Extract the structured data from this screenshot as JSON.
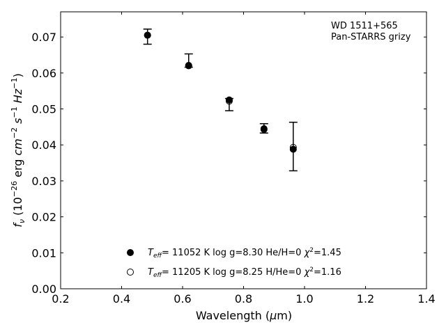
{
  "chart_data": {
    "type": "scatter",
    "title": "",
    "xlabel": "Wavelength (μm)",
    "ylabel": "f_ν (10^-26 erg cm^-2 s^-1 Hz^-1)",
    "xlim": [
      0.2,
      1.4
    ],
    "ylim": [
      0.0,
      0.077
    ],
    "xticks": [
      0.2,
      0.4,
      0.6,
      0.8,
      1.0,
      1.2,
      1.4
    ],
    "yticks": [
      0.0,
      0.01,
      0.02,
      0.03,
      0.04,
      0.05,
      0.06,
      0.07
    ],
    "grid": false,
    "annotation": [
      "WD 1511+565",
      "Pan-STARRS grizy"
    ],
    "observed": {
      "x": [
        0.485,
        0.62,
        0.753,
        0.867,
        0.963
      ],
      "y": [
        0.0705,
        0.0621,
        0.0525,
        0.0445,
        0.0388
      ],
      "yerr_low": [
        0.0025,
        0.0005,
        0.003,
        0.0012,
        0.006
      ],
      "yerr_high": [
        0.0017,
        0.0032,
        0.0004,
        0.0014,
        0.0075
      ]
    },
    "series": [
      {
        "name": "T_eff= 11052 K  log g=8.30  He/H=0  χ²=1.45",
        "marker": "filled",
        "x": [
          0.485,
          0.62,
          0.753,
          0.867,
          0.963
        ],
        "y": [
          0.0705,
          0.0621,
          0.0525,
          0.0445,
          0.0388
        ]
      },
      {
        "name": "T_eff= 11205 K  log g=8.25  H/He=0  χ²=1.16",
        "marker": "open",
        "x": [
          0.485,
          0.62,
          0.753,
          0.867,
          0.963
        ],
        "y": [
          0.0705,
          0.062,
          0.0522,
          0.0443,
          0.0393
        ]
      }
    ],
    "legend_position": "bottom-center",
    "colors": {
      "marker": "#000000",
      "axes": "#000000"
    }
  }
}
